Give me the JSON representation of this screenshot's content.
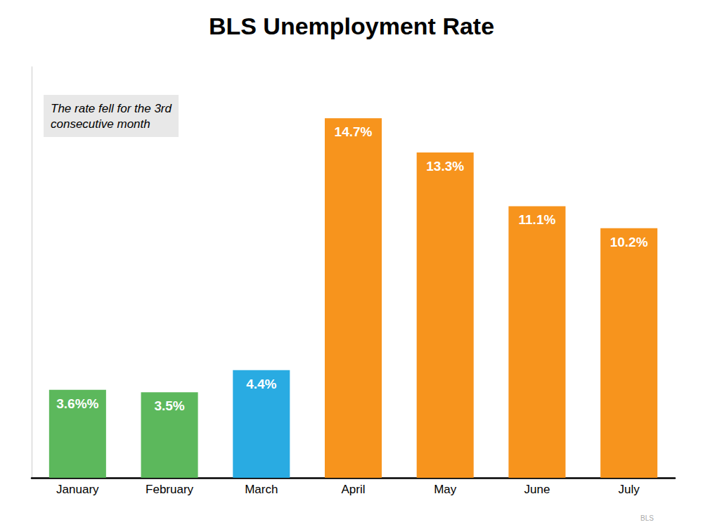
{
  "chart_data": {
    "type": "bar",
    "title": "BLS Unemployment Rate",
    "categories": [
      "January",
      "February",
      "March",
      "April",
      "May",
      "June",
      "July"
    ],
    "values": [
      3.6,
      3.5,
      4.4,
      14.7,
      13.3,
      11.1,
      10.2
    ],
    "value_labels": [
      "3.6%%",
      "3.5%",
      "4.4%",
      "14.7%",
      "13.3%",
      "11.1%",
      "10.2%"
    ],
    "colors": [
      "#5cb85c",
      "#5cb85c",
      "#29abe2",
      "#f7941d",
      "#f7941d",
      "#f7941d",
      "#f7941d"
    ],
    "ylim": [
      0,
      16.8
    ],
    "grid": false,
    "tick_labels": "x",
    "data_labels": true,
    "annotations": [
      "The rate fell for the 3rd\nconsecutive month",
      "BLS"
    ]
  }
}
